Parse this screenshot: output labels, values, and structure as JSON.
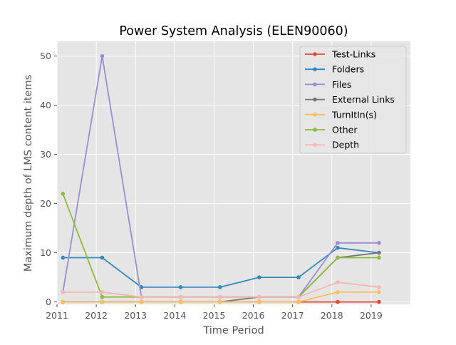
{
  "chart_data": {
    "type": "line",
    "title": "Power System Analysis (ELEN90060)",
    "xlabel": "Time Period",
    "ylabel": "Maximum depth of LMS content items",
    "xlim": [
      2011,
      2020
    ],
    "ylim": [
      -0.5,
      53
    ],
    "x_ticks": [
      2011,
      2012,
      2013,
      2014,
      2015,
      2016,
      2017,
      2018,
      2019
    ],
    "y_ticks": [
      0,
      10,
      20,
      30,
      40,
      50
    ],
    "grid": true,
    "legend_position": "top-right",
    "x": [
      2011.15,
      2012.15,
      2013.15,
      2014.15,
      2015.15,
      2016.15,
      2017.15,
      2018.15,
      2019.2
    ],
    "series": [
      {
        "name": "Test-Links",
        "color": "#e24a33",
        "values": [
          0,
          0,
          0,
          0,
          0,
          0,
          0,
          0,
          0
        ]
      },
      {
        "name": "Folders",
        "color": "#348abd",
        "values": [
          9,
          9,
          3,
          3,
          3,
          5,
          5,
          11,
          10
        ]
      },
      {
        "name": "Files",
        "color": "#988ed5",
        "values": [
          2,
          50,
          1,
          1,
          1,
          1,
          1,
          12,
          12
        ]
      },
      {
        "name": "External Links",
        "color": "#777777",
        "values": [
          0,
          0,
          0,
          0,
          0,
          1,
          1,
          9,
          10
        ]
      },
      {
        "name": "TurnItIn(s)",
        "color": "#fbc15e",
        "values": [
          0,
          0,
          0,
          0,
          0,
          0,
          0,
          2,
          2
        ]
      },
      {
        "name": "Other",
        "color": "#8eba42",
        "values": [
          22,
          1,
          1,
          1,
          1,
          1,
          1,
          9,
          9
        ]
      },
      {
        "name": "Depth",
        "color": "#ffb5b8",
        "values": [
          2,
          2,
          1,
          1,
          1,
          1,
          1,
          4,
          3
        ]
      }
    ]
  }
}
